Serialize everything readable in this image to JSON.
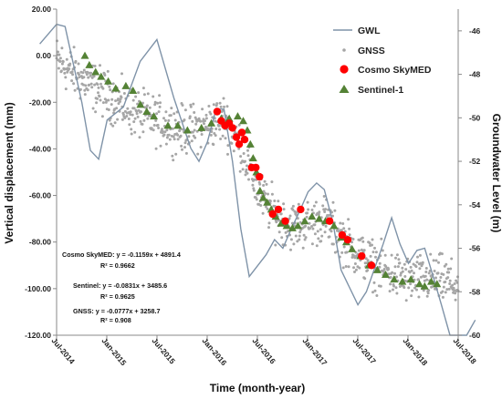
{
  "chart_data": {
    "type": "scatter",
    "xlabel": "Time (month-year)",
    "ylabel": "Vertical displacement (mm)",
    "y2label": "Groundwater Level (m)",
    "ylim": [
      -120,
      20
    ],
    "y2lim": [
      -60,
      -45
    ],
    "y_ticks": [
      "20.00",
      "0.00",
      "-20.00",
      "-40.00",
      "-60.00",
      "-80.00",
      "-100.00",
      "-120.00"
    ],
    "y2_ticks": [
      "-46",
      "-48",
      "-50",
      "-52",
      "-54",
      "-56",
      "-58",
      "-60"
    ],
    "x_ticks": [
      "Jul-2014",
      "Jan-2015",
      "Jul-2015",
      "Jan-2016",
      "Jul-2016",
      "Jan-2017",
      "Jul-2017",
      "Jan-2018",
      "Jul-2018"
    ],
    "grid": false,
    "legend_position": "top-right",
    "series": [
      {
        "name": "GWL",
        "kind": "line",
        "axis": "right",
        "color": "#7f93a8",
        "points": [
          [
            "2014-05",
            -46.6
          ],
          [
            "2014-07",
            -45.7
          ],
          [
            "2014-08",
            -45.8
          ],
          [
            "2014-10",
            -49.3
          ],
          [
            "2014-11",
            -51.5
          ],
          [
            "2014-12",
            -51.9
          ],
          [
            "2015-01",
            -50.1
          ],
          [
            "2015-03",
            -49.5
          ],
          [
            "2015-05",
            -47.4
          ],
          [
            "2015-07",
            -46.4
          ],
          [
            "2015-09",
            -49.1
          ],
          [
            "2015-11",
            -51.4
          ],
          [
            "2015-12",
            -52.0
          ],
          [
            "2016-01",
            -51.1
          ],
          [
            "2016-02",
            -49.6
          ],
          [
            "2016-03",
            -49.6
          ],
          [
            "2016-04",
            -52.0
          ],
          [
            "2016-05",
            -55.1
          ],
          [
            "2016-06",
            -57.3
          ],
          [
            "2016-08",
            -56.3
          ],
          [
            "2016-09",
            -55.6
          ],
          [
            "2016-10",
            -56.0
          ],
          [
            "2016-11",
            -55.1
          ],
          [
            "2016-12",
            -54.3
          ],
          [
            "2017-01",
            -53.4
          ],
          [
            "2017-02",
            -53.0
          ],
          [
            "2017-03",
            -53.3
          ],
          [
            "2017-04",
            -54.8
          ],
          [
            "2017-05",
            -57.0
          ],
          [
            "2017-07",
            -58.6
          ],
          [
            "2017-08",
            -58.0
          ],
          [
            "2017-10",
            -55.8
          ],
          [
            "2017-11",
            -54.6
          ],
          [
            "2017-12",
            -55.8
          ],
          [
            "2018-01",
            -56.7
          ],
          [
            "2018-02",
            -56.1
          ],
          [
            "2018-03",
            -56.0
          ],
          [
            "2018-04",
            -57.3
          ],
          [
            "2018-05",
            -58.6
          ],
          [
            "2018-06",
            -60.0
          ],
          [
            "2018-08",
            -60.0
          ],
          [
            "2018-09",
            -59.3
          ]
        ]
      },
      {
        "name": "GNSS",
        "kind": "points",
        "axis": "left",
        "color": "#a6a6a6",
        "trend": [
          [
            "2014-07",
            -2
          ],
          [
            "2014-10",
            -10
          ],
          [
            "2015-01",
            -17
          ],
          [
            "2015-04",
            -24
          ],
          [
            "2015-07",
            -28
          ],
          [
            "2015-10",
            -32
          ],
          [
            "2016-01",
            -30
          ],
          [
            "2016-03",
            -27
          ],
          [
            "2016-05",
            -38
          ],
          [
            "2016-07",
            -58
          ],
          [
            "2016-09",
            -68
          ],
          [
            "2016-11",
            -73
          ],
          [
            "2017-01",
            -72
          ],
          [
            "2017-03",
            -70
          ],
          [
            "2017-05",
            -78
          ],
          [
            "2017-07",
            -85
          ],
          [
            "2017-09",
            -90
          ],
          [
            "2017-11",
            -94
          ],
          [
            "2018-01",
            -96
          ],
          [
            "2018-03",
            -96
          ],
          [
            "2018-05",
            -96
          ],
          [
            "2018-07",
            -99
          ]
        ],
        "spread": 5
      },
      {
        "name": "Cosmo SkyMED",
        "kind": "points",
        "axis": "left",
        "color": "#ff0000",
        "points": [
          [
            "2016-02-05",
            -24
          ],
          [
            "2016-02-20",
            -28
          ],
          [
            "2016-03-05",
            -30
          ],
          [
            "2016-03-20",
            -29
          ],
          [
            "2016-04-01",
            -31
          ],
          [
            "2016-04-15",
            -35
          ],
          [
            "2016-04-25",
            -38
          ],
          [
            "2016-05-05",
            -33
          ],
          [
            "2016-05-15",
            -36
          ],
          [
            "2016-06-10",
            -48
          ],
          [
            "2016-06-25",
            -48
          ],
          [
            "2016-07-08",
            -52
          ],
          [
            "2016-08-25",
            -68
          ],
          [
            "2016-09-15",
            -66
          ],
          [
            "2016-10-10",
            -71
          ],
          [
            "2016-12-05",
            -66
          ],
          [
            "2017-03-20",
            -71
          ],
          [
            "2017-05-05",
            -77
          ],
          [
            "2017-05-25",
            -79
          ],
          [
            "2017-07-15",
            -86
          ],
          [
            "2017-08-20",
            -90
          ]
        ]
      },
      {
        "name": "Sentinel-1",
        "kind": "points",
        "axis": "left",
        "color": "#548235",
        "points": [
          [
            "2014-10-12",
            0
          ],
          [
            "2014-10-28",
            -4
          ],
          [
            "2014-11-20",
            -7
          ],
          [
            "2014-12-10",
            -9
          ],
          [
            "2015-01-05",
            -11
          ],
          [
            "2015-02-01",
            -14
          ],
          [
            "2015-03-10",
            -13
          ],
          [
            "2015-04-05",
            -15
          ],
          [
            "2015-05-02",
            -21
          ],
          [
            "2015-05-25",
            -24
          ],
          [
            "2015-06-20",
            -26
          ],
          [
            "2015-08-10",
            -30
          ],
          [
            "2015-09-15",
            -30
          ],
          [
            "2015-10-20",
            -32
          ],
          [
            "2015-12-10",
            -31
          ],
          [
            "2016-01-15",
            -29
          ],
          [
            "2016-02-20",
            -27
          ],
          [
            "2016-03-20",
            -27
          ],
          [
            "2016-04-20",
            -26
          ],
          [
            "2016-05-10",
            -28
          ],
          [
            "2016-05-25",
            -32
          ],
          [
            "2016-06-05",
            -38
          ],
          [
            "2016-06-15",
            -44
          ],
          [
            "2016-06-27",
            -50
          ],
          [
            "2016-07-10",
            -58
          ],
          [
            "2016-07-22",
            -61
          ],
          [
            "2016-08-05",
            -63
          ],
          [
            "2016-08-20",
            -66
          ],
          [
            "2016-09-05",
            -69
          ],
          [
            "2016-09-25",
            -72
          ],
          [
            "2016-10-15",
            -73
          ],
          [
            "2016-11-05",
            -74
          ],
          [
            "2016-11-25",
            -73
          ],
          [
            "2016-12-20",
            -71
          ],
          [
            "2017-01-15",
            -69
          ],
          [
            "2017-02-10",
            -70
          ],
          [
            "2017-03-05",
            -71
          ],
          [
            "2017-04-05",
            -73
          ],
          [
            "2017-05-01",
            -78
          ],
          [
            "2017-05-20",
            -80
          ],
          [
            "2017-06-10",
            -83
          ],
          [
            "2017-07-10",
            -86
          ],
          [
            "2017-08-10",
            -90
          ],
          [
            "2017-09-10",
            -92
          ],
          [
            "2017-10-10",
            -94
          ],
          [
            "2017-11-10",
            -96
          ],
          [
            "2017-12-10",
            -97
          ],
          [
            "2018-01-10",
            -96
          ],
          [
            "2018-02-10",
            -98
          ],
          [
            "2018-03-01",
            -99
          ],
          [
            "2018-03-25",
            -97
          ],
          [
            "2018-04-15",
            -98
          ]
        ]
      }
    ],
    "annotations": [
      {
        "line1": "Cosmo SkyMED: y = -0.1159x + 4891.4",
        "line2": "R² = 0.9662"
      },
      {
        "line1": "Sentinel: y = -0.0831x + 3485.6",
        "line2": "R² = 0.9625"
      },
      {
        "line1": "GNSS: y = -0.0777x + 3258.7",
        "line2": "R² = 0.908"
      }
    ]
  }
}
